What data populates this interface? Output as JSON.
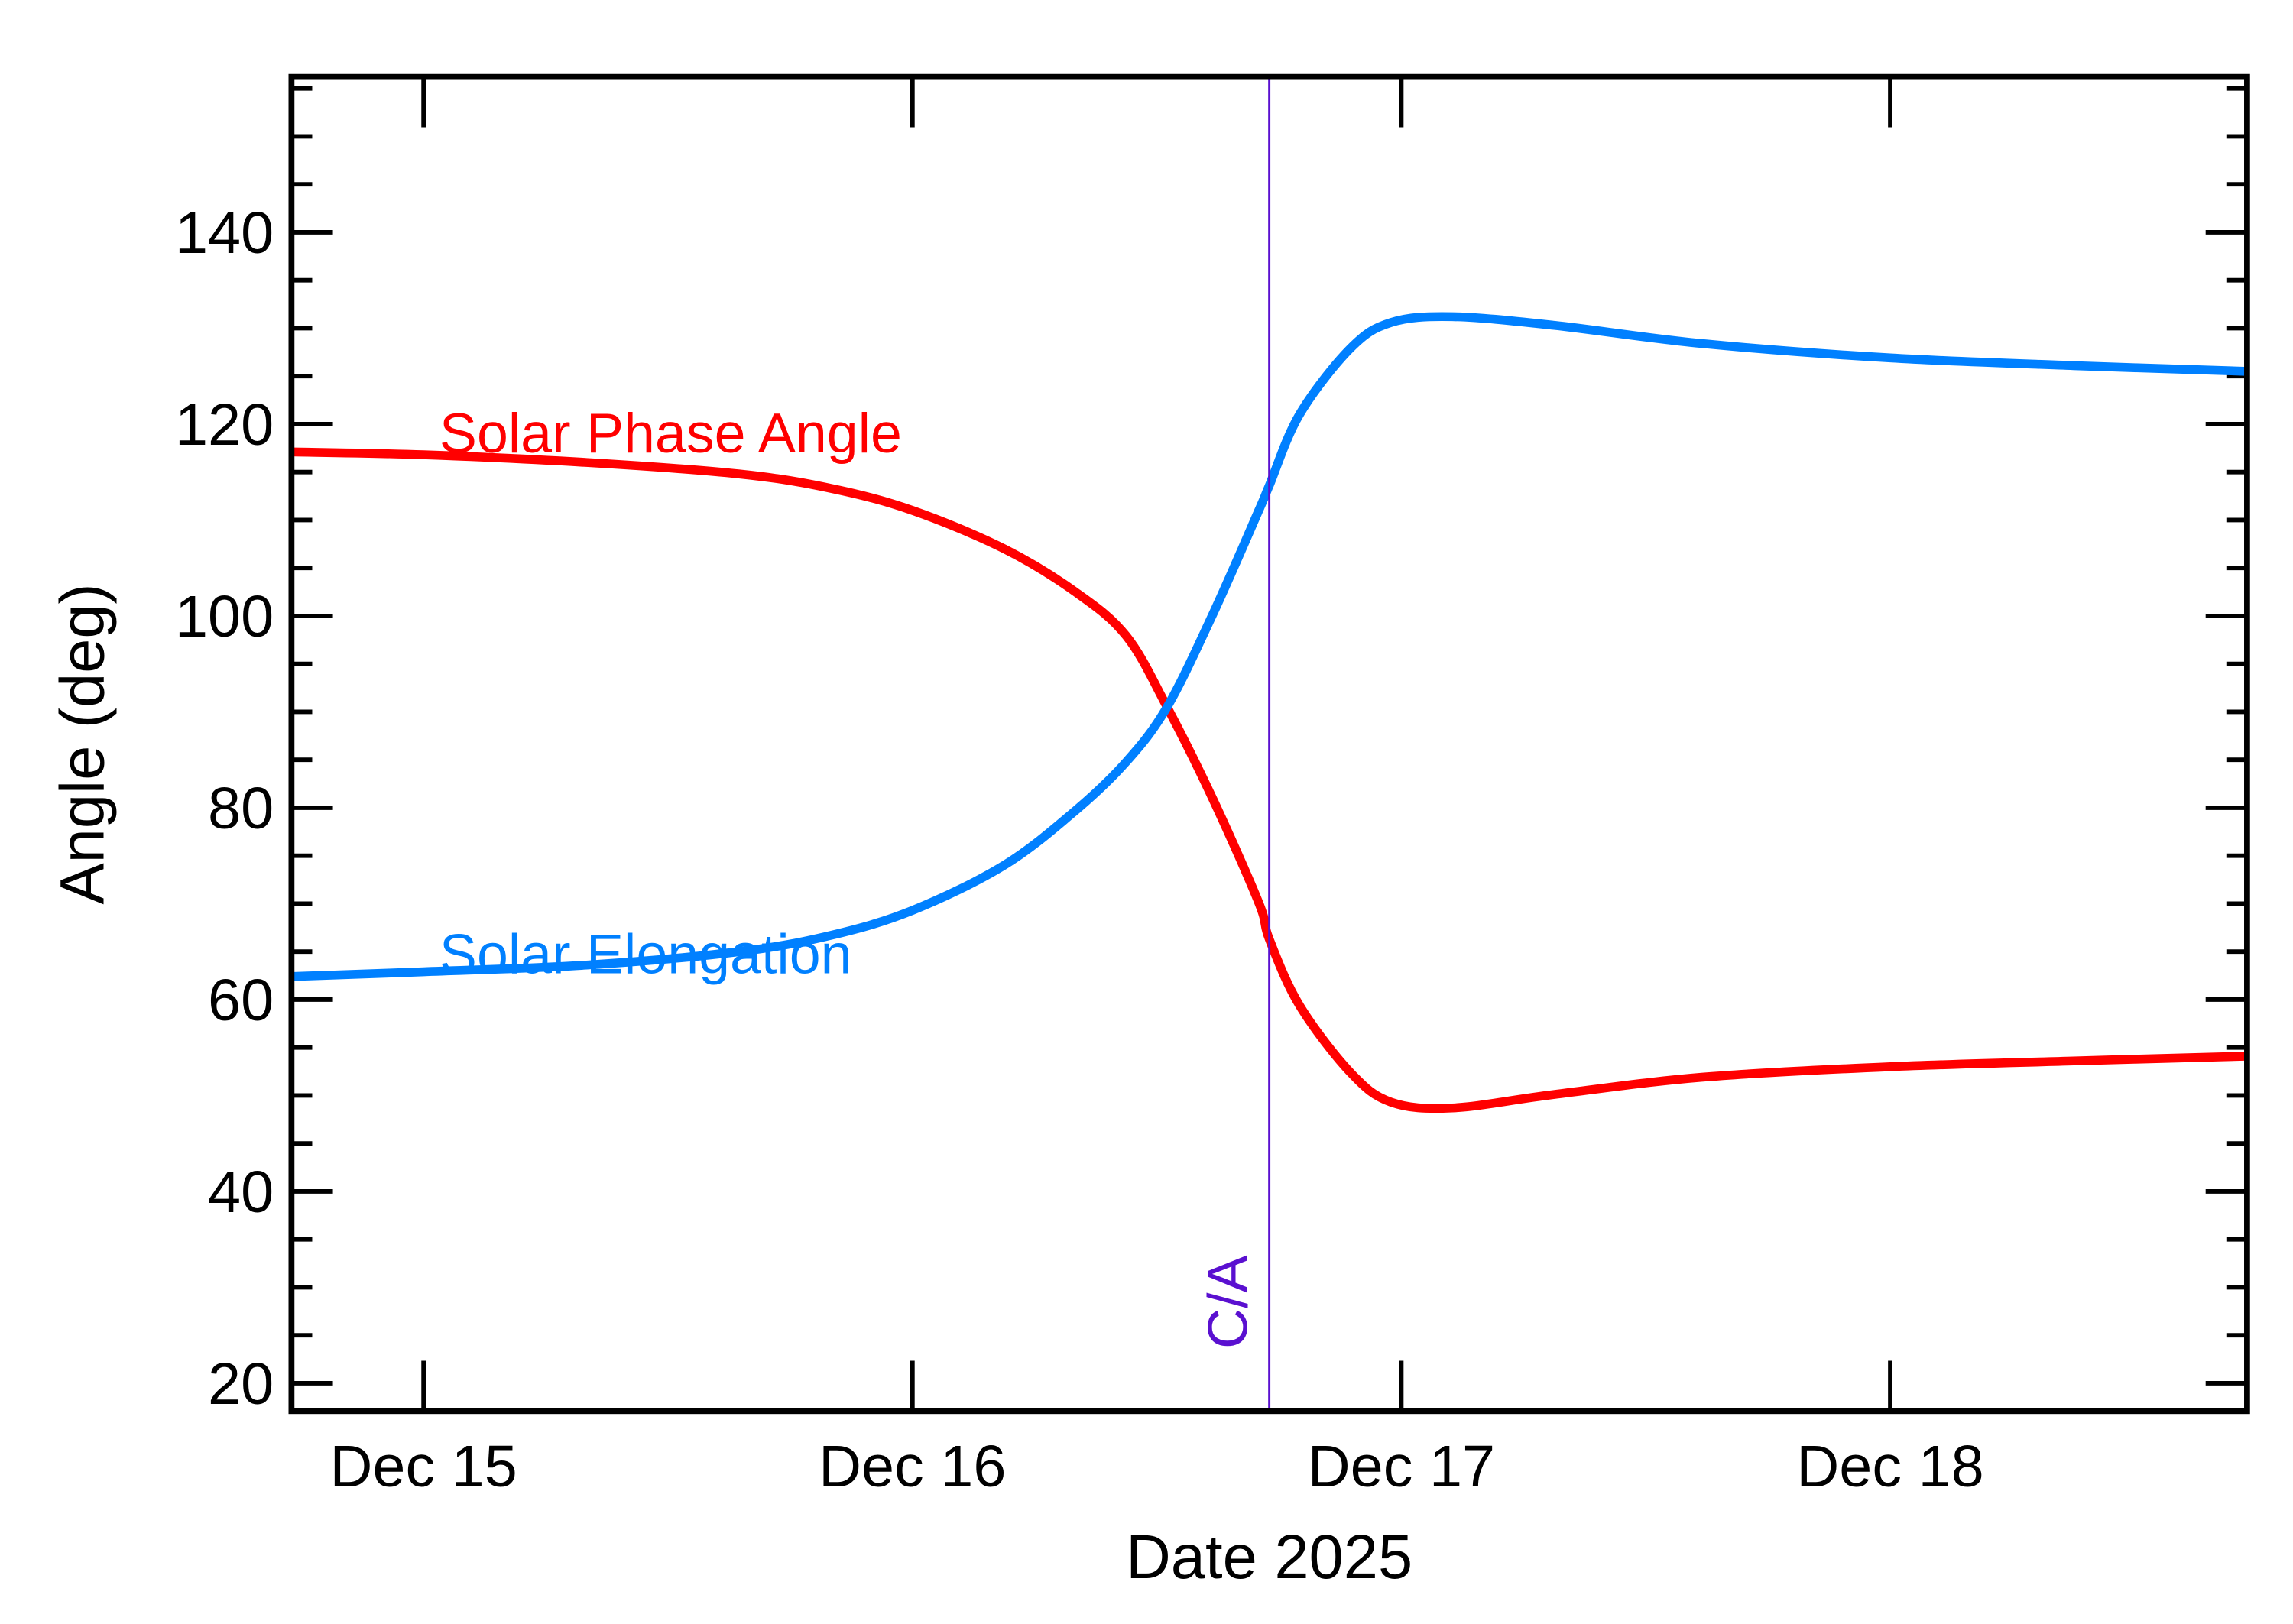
{
  "chart_data": {
    "type": "line",
    "title": "",
    "xlabel": "Date 2025",
    "ylabel": "Angle (deg)",
    "xlim": [
      "2025-12-14T17:31",
      "2025-12-18T17:31"
    ],
    "ylim": [
      17.1,
      156.2
    ],
    "xticks": [
      {
        "value": "2025-12-15T00:00",
        "label": "Dec 15"
      },
      {
        "value": "2025-12-16T00:00",
        "label": "Dec 16"
      },
      {
        "value": "2025-12-17T00:00",
        "label": "Dec 17"
      },
      {
        "value": "2025-12-18T00:00",
        "label": "Dec 18"
      }
    ],
    "yticks": [
      20,
      40,
      60,
      80,
      100,
      120,
      140
    ],
    "yminor_step": 5,
    "grid": false,
    "legend": "inline labels",
    "annotation": {
      "label": "C/A",
      "x": "2025-12-16T17:31",
      "color": "#5a10d0"
    },
    "series": [
      {
        "name": "Solar Phase Angle",
        "color": "#ff0000",
        "x": [
          "2025-12-14T17:31",
          "2025-12-15T00:00",
          "2025-12-15T08:00",
          "2025-12-15T15:30",
          "2025-12-15T20:00",
          "2025-12-16T00:00",
          "2025-12-16T04:30",
          "2025-12-16T08:00",
          "2025-12-16T10:30",
          "2025-12-16T12:30",
          "2025-12-16T14:45",
          "2025-12-16T17:00",
          "2025-12-16T17:31",
          "2025-12-16T19:00",
          "2025-12-16T21:30",
          "2025-12-16T23:30",
          "2025-12-17T02:30",
          "2025-12-17T07:30",
          "2025-12-17T14:45",
          "2025-12-18T00:00",
          "2025-12-18T09:00",
          "2025-12-18T17:31"
        ],
        "y": [
          117.1,
          116.8,
          116.0,
          114.8,
          113.3,
          111.0,
          107.0,
          102.5,
          97.9,
          90.5,
          80.9,
          70.1,
          66.3,
          59.4,
          52.4,
          49.3,
          48.7,
          50.1,
          51.9,
          53.0,
          53.6,
          54.1
        ]
      },
      {
        "name": "Solar Elongation",
        "color": "#0080ff",
        "x": [
          "2025-12-14T17:31",
          "2025-12-15T00:00",
          "2025-12-15T08:00",
          "2025-12-15T15:30",
          "2025-12-15T20:00",
          "2025-12-16T00:00",
          "2025-12-16T04:30",
          "2025-12-16T08:00",
          "2025-12-16T10:30",
          "2025-12-16T12:30",
          "2025-12-16T14:45",
          "2025-12-16T17:00",
          "2025-12-16T17:31",
          "2025-12-16T19:00",
          "2025-12-16T21:30",
          "2025-12-16T23:30",
          "2025-12-17T02:30",
          "2025-12-17T07:30",
          "2025-12-17T14:45",
          "2025-12-18T00:00",
          "2025-12-18T09:00",
          "2025-12-18T17:31"
        ],
        "y": [
          62.4,
          62.9,
          63.6,
          65.0,
          66.7,
          69.3,
          74.0,
          79.7,
          84.8,
          90.5,
          100.2,
          111.0,
          113.6,
          121.0,
          127.9,
          130.6,
          131.2,
          130.3,
          128.4,
          126.9,
          126.1,
          125.5
        ]
      }
    ]
  }
}
